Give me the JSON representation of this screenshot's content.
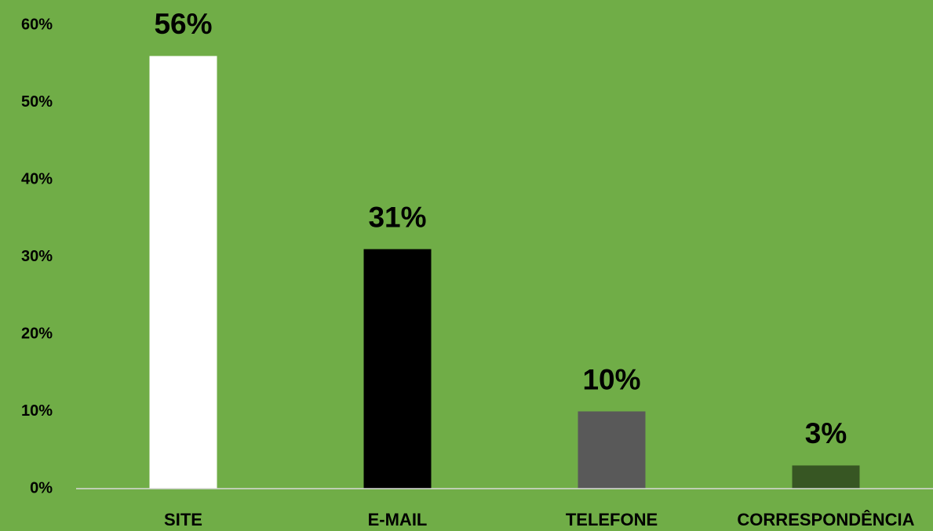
{
  "chart_data": {
    "type": "bar",
    "categories": [
      "SITE",
      "E-MAIL",
      "TELEFONE",
      "CORRESPONDÊNCIA"
    ],
    "values": [
      56,
      31,
      10,
      3
    ],
    "value_labels": [
      "56%",
      "31%",
      "10%",
      "3%"
    ],
    "colors": [
      "#ffffff",
      "#000000",
      "#595959",
      "#375623"
    ],
    "ylim": [
      0,
      60
    ],
    "yticks": [
      {
        "value": 0,
        "label": "0%"
      },
      {
        "value": 10,
        "label": "10%"
      },
      {
        "value": 20,
        "label": "20%"
      },
      {
        "value": 30,
        "label": "30%"
      },
      {
        "value": 40,
        "label": "40%"
      },
      {
        "value": 50,
        "label": "50%"
      },
      {
        "value": 60,
        "label": "60%"
      }
    ],
    "grid": false
  }
}
